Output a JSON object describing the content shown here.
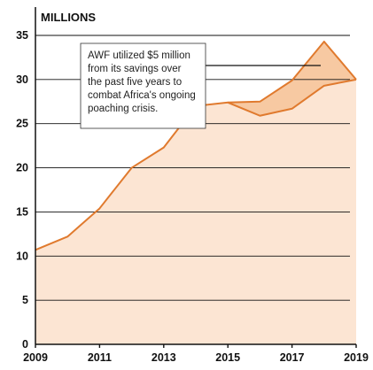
{
  "chart_data": {
    "type": "area",
    "ylabel": "MILLIONS",
    "ylim": [
      0,
      35
    ],
    "yticks": [
      0,
      5,
      10,
      15,
      20,
      25,
      30,
      35
    ],
    "xlim": [
      2009,
      2019
    ],
    "xtick_labels": [
      "2009",
      "2011",
      "2013",
      "2015",
      "2017",
      "2019"
    ],
    "grid": true,
    "colors": {
      "line": "#E07A2E",
      "fill_lower": "#FCE5D3",
      "fill_gap": "#F7C9A2",
      "grid": "#111111"
    },
    "series": [
      {
        "x": [
          2009,
          2010,
          2011,
          2012,
          2013,
          2014,
          2015,
          2016,
          2017,
          2018,
          2019
        ],
        "values": [
          10.7,
          12.2,
          15.4,
          20.0,
          22.3,
          27.0,
          27.4,
          25.9,
          26.7,
          29.3,
          30.0
        ]
      },
      {
        "x": [
          2015,
          2016,
          2017,
          2018,
          2019
        ],
        "values": [
          27.4,
          27.5,
          29.9,
          34.3,
          30.0
        ]
      }
    ],
    "annotation": {
      "lines": [
        "AWF utilized $5 million",
        "from its savings over",
        "the past five years to",
        "combat Africa's ongoing",
        "poaching crisis."
      ]
    }
  }
}
